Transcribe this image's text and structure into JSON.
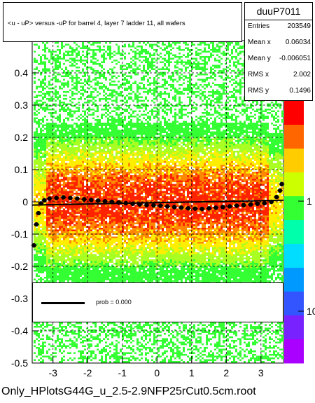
{
  "chart_data": {
    "type": "heatmap",
    "title": "<u - uP>       versus  -uP for barrel 4, layer 7 ladder 11, all wafers",
    "xlabel": "",
    "ylabel": "",
    "xlim": [
      -3.6,
      3.65
    ],
    "ylim": [
      -0.5,
      0.5
    ],
    "x_ticks": [
      "-3",
      "-2",
      "-1",
      "0",
      "1",
      "2",
      "3"
    ],
    "x_tick_values": [
      -3,
      -2,
      -1,
      0,
      1,
      2,
      3
    ],
    "y_ticks": [
      "-0.5",
      "-0.4",
      "-0.3",
      "-0.2",
      "-0.1",
      "0",
      "0.1",
      "0.2",
      "0.3",
      "0.4"
    ],
    "y_tick_values": [
      -0.5,
      -0.4,
      -0.3,
      -0.2,
      -0.1,
      0,
      0.1,
      0.2,
      0.3,
      0.4
    ],
    "grid": true,
    "colorbar_ticks": [
      "1",
      "10"
    ],
    "colorbar_tick_values": [
      1,
      10
    ],
    "profile_points": [
      [
        -3.55,
        -0.135
      ],
      [
        -3.48,
        -0.07
      ],
      [
        -3.42,
        -0.035
      ],
      [
        -3.35,
        -0.005
      ],
      [
        -3.25,
        0.005
      ],
      [
        -3.1,
        0.01
      ],
      [
        -2.9,
        0.012
      ],
      [
        -2.7,
        0.014
      ],
      [
        -2.5,
        0.012
      ],
      [
        -2.3,
        0.01
      ],
      [
        -2.1,
        0.008
      ],
      [
        -1.9,
        0.006
      ],
      [
        -1.7,
        0.004
      ],
      [
        -1.5,
        0.002
      ],
      [
        -1.3,
        0.0
      ],
      [
        -1.1,
        -0.002
      ],
      [
        -0.9,
        -0.004
      ],
      [
        -0.7,
        -0.006
      ],
      [
        -0.5,
        -0.008
      ],
      [
        -0.3,
        -0.01
      ],
      [
        -0.1,
        -0.011
      ],
      [
        0.1,
        -0.012
      ],
      [
        0.3,
        -0.014
      ],
      [
        0.5,
        -0.016
      ],
      [
        0.7,
        -0.018
      ],
      [
        0.9,
        -0.02
      ],
      [
        1.1,
        -0.021
      ],
      [
        1.3,
        -0.022
      ],
      [
        1.5,
        -0.02
      ],
      [
        1.7,
        -0.018
      ],
      [
        1.9,
        -0.016
      ],
      [
        2.1,
        -0.014
      ],
      [
        2.3,
        -0.012
      ],
      [
        2.5,
        -0.01
      ],
      [
        2.7,
        -0.008
      ],
      [
        2.9,
        -0.006
      ],
      [
        3.1,
        -0.004
      ],
      [
        3.3,
        0.0
      ],
      [
        3.45,
        0.015
      ],
      [
        3.55,
        0.035
      ],
      [
        3.6,
        0.055
      ]
    ],
    "fit_line": [
      [
        -3.6,
        -0.01
      ],
      [
        3.65,
        0.005
      ]
    ],
    "legend": {
      "label": "prob = 0.000"
    }
  },
  "stats": {
    "name": "duuP7011",
    "rows": [
      {
        "key": "Entries",
        "value": "203549"
      },
      {
        "key": "Mean x",
        "value": "0.06034"
      },
      {
        "key": "Mean y",
        "value": "-0.006051"
      },
      {
        "key": "RMS x",
        "value": "2.002"
      },
      {
        "key": "RMS y",
        "value": "0.1496"
      }
    ]
  },
  "footer": "Only_HPlotsG44G_u_2.5-2.9NFP25rCut0.5cm.root",
  "colors": {
    "green": "#33ff33",
    "yellow": "#ffee00",
    "orange": "#ff8800",
    "red": "#ff2200"
  }
}
